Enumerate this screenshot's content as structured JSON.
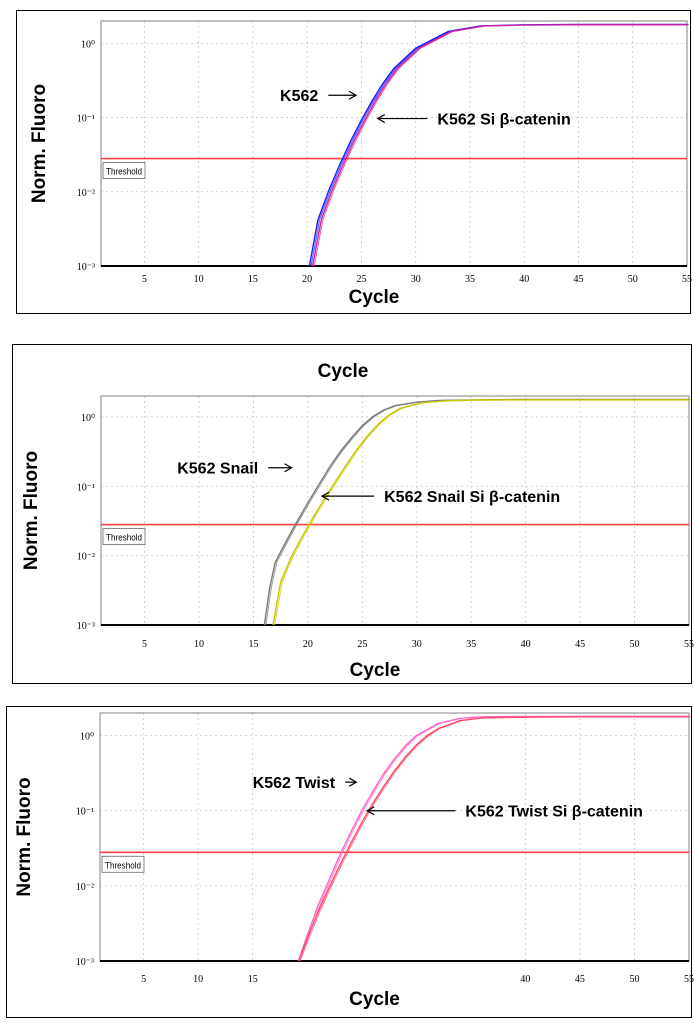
{
  "chart_data": [
    {
      "type": "line",
      "ylabel": "Norm. Fluoro",
      "xlabel": "Cycle",
      "x_ticks": [
        "5",
        "10",
        "15",
        "20",
        "25",
        "30",
        "35",
        "40",
        "45",
        "50",
        "55"
      ],
      "y_ticks": [
        "10⁻³",
        "10⁻²",
        "10⁻¹",
        "10⁰"
      ],
      "yscale": "log",
      "xlim": [
        1,
        55
      ],
      "ylim": [
        0.001,
        2
      ],
      "threshold_label": "Threshold",
      "threshold": 0.028,
      "threshold_color": "#ff4040",
      "series": [
        {
          "name": "K562",
          "color": "#1a1aff",
          "x": [
            20.2,
            21,
            22,
            23,
            24,
            25,
            26,
            27,
            28,
            30,
            33,
            36,
            40,
            45,
            50,
            55
          ],
          "y": [
            0.001,
            0.0042,
            0.0105,
            0.023,
            0.048,
            0.092,
            0.17,
            0.29,
            0.46,
            0.86,
            1.45,
            1.72,
            1.78,
            1.8,
            1.8,
            1.8
          ]
        },
        {
          "name": "K562 Si β-catenin",
          "color": "#d1249b",
          "x": [
            20.5,
            21.3,
            22.3,
            23.3,
            24.3,
            25.3,
            26.3,
            27.3,
            28.3,
            30.3,
            33.3,
            36.3,
            40,
            45,
            50,
            55
          ],
          "y": [
            0.001,
            0.0042,
            0.0105,
            0.023,
            0.048,
            0.092,
            0.17,
            0.29,
            0.46,
            0.86,
            1.45,
            1.72,
            1.76,
            1.78,
            1.78,
            1.78
          ]
        }
      ],
      "annotations": [
        {
          "text": "K562",
          "x": 17.5,
          "y": 0.2,
          "arrow_to": [
            24.5,
            0.2
          ]
        },
        {
          "text": "K562 Si β-catenin",
          "x": 32,
          "y": 0.097,
          "arrow_to": [
            26.5,
            0.097
          ]
        }
      ]
    },
    {
      "type": "line",
      "title": "Cycle",
      "ylabel": "Norm. Fluoro",
      "xlabel": "Cycle",
      "x_ticks": [
        "5",
        "10",
        "15",
        "20",
        "25",
        "30",
        "35",
        "40",
        "45",
        "50",
        "55"
      ],
      "y_ticks": [
        "10⁻³",
        "10⁻²",
        "10⁻¹",
        "10⁰"
      ],
      "yscale": "log",
      "xlim": [
        1,
        55
      ],
      "ylim": [
        0.001,
        2
      ],
      "threshold_label": "Threshold",
      "threshold": 0.028,
      "threshold_color": "#ff4040",
      "series": [
        {
          "name": "K562 Snail",
          "color": "#7a7a7a",
          "x": [
            16,
            16.5,
            17,
            18,
            19,
            20,
            21,
            22,
            23,
            24,
            25,
            26,
            27,
            28,
            30,
            32,
            35,
            40,
            45,
            50,
            55
          ],
          "y": [
            0.001,
            0.0035,
            0.008,
            0.016,
            0.031,
            0.058,
            0.105,
            0.19,
            0.32,
            0.5,
            0.75,
            1.02,
            1.26,
            1.45,
            1.63,
            1.72,
            1.76,
            1.78,
            1.78,
            1.78,
            1.78
          ]
        },
        {
          "name": "K562 Snail Si β-catenin",
          "color": "#c8c800",
          "x": [
            16.8,
            17.5,
            18.5,
            19.5,
            20.5,
            21.5,
            22.5,
            23.5,
            24.5,
            25.5,
            26.5,
            27.5,
            28.5,
            30.5,
            32.5,
            35.5,
            40,
            45,
            50,
            55
          ],
          "y": [
            0.001,
            0.0042,
            0.0098,
            0.019,
            0.036,
            0.065,
            0.115,
            0.2,
            0.34,
            0.54,
            0.8,
            1.08,
            1.33,
            1.6,
            1.7,
            1.75,
            1.76,
            1.76,
            1.76,
            1.76
          ]
        }
      ],
      "annotations": [
        {
          "text": "K562 Snail",
          "x": 8,
          "y": 0.185,
          "arrow_to": [
            18.5,
            0.185
          ]
        },
        {
          "text": "K562 Snail Si β-catenin",
          "x": 27,
          "y": 0.072,
          "arrow_to": [
            21.3,
            0.072
          ]
        }
      ]
    },
    {
      "type": "line",
      "ylabel": "Norm. Fluoro",
      "xlabel": "Cycle",
      "x_ticks": [
        "5",
        "10",
        "15",
        "40",
        "45",
        "50",
        "55"
      ],
      "y_ticks": [
        "10⁻³",
        "10⁻²",
        "10⁻¹",
        "10⁰"
      ],
      "yscale": "log",
      "xlim": [
        1,
        55
      ],
      "ylim": [
        0.001,
        2
      ],
      "threshold_label": "Threshold",
      "threshold": 0.028,
      "threshold_color": "#ff4040",
      "series": [
        {
          "name": "K562 Twist",
          "color": "#ff66cc",
          "x": [
            19.2,
            20,
            21,
            22,
            23,
            24,
            25,
            26,
            27,
            28,
            29,
            30,
            32,
            34,
            36,
            40,
            45,
            50,
            55
          ],
          "y": [
            0.001,
            0.0022,
            0.0055,
            0.012,
            0.026,
            0.052,
            0.1,
            0.18,
            0.31,
            0.49,
            0.73,
            1.0,
            1.45,
            1.7,
            1.78,
            1.8,
            1.8,
            1.8,
            1.8
          ]
        },
        {
          "name": "K562 Twist Si β-catenin",
          "color": "#ff4a6a",
          "x": [
            19.2,
            20,
            21,
            22,
            23,
            24,
            25,
            26,
            27,
            28,
            29,
            30,
            31,
            32,
            34,
            36,
            40,
            45,
            50,
            55
          ],
          "y": [
            0.001,
            0.002,
            0.0045,
            0.0095,
            0.019,
            0.037,
            0.07,
            0.125,
            0.21,
            0.34,
            0.52,
            0.75,
            1.0,
            1.24,
            1.58,
            1.72,
            1.76,
            1.78,
            1.78,
            1.78
          ]
        }
      ],
      "annotations": [
        {
          "text": "K562 Twist",
          "x": 15,
          "y": 0.24,
          "arrow_to": [
            24.5,
            0.24
          ]
        },
        {
          "text": "K562 Twist Si β-catenin",
          "x": 34.5,
          "y": 0.1,
          "arrow_to": [
            25.5,
            0.1
          ]
        }
      ]
    }
  ]
}
